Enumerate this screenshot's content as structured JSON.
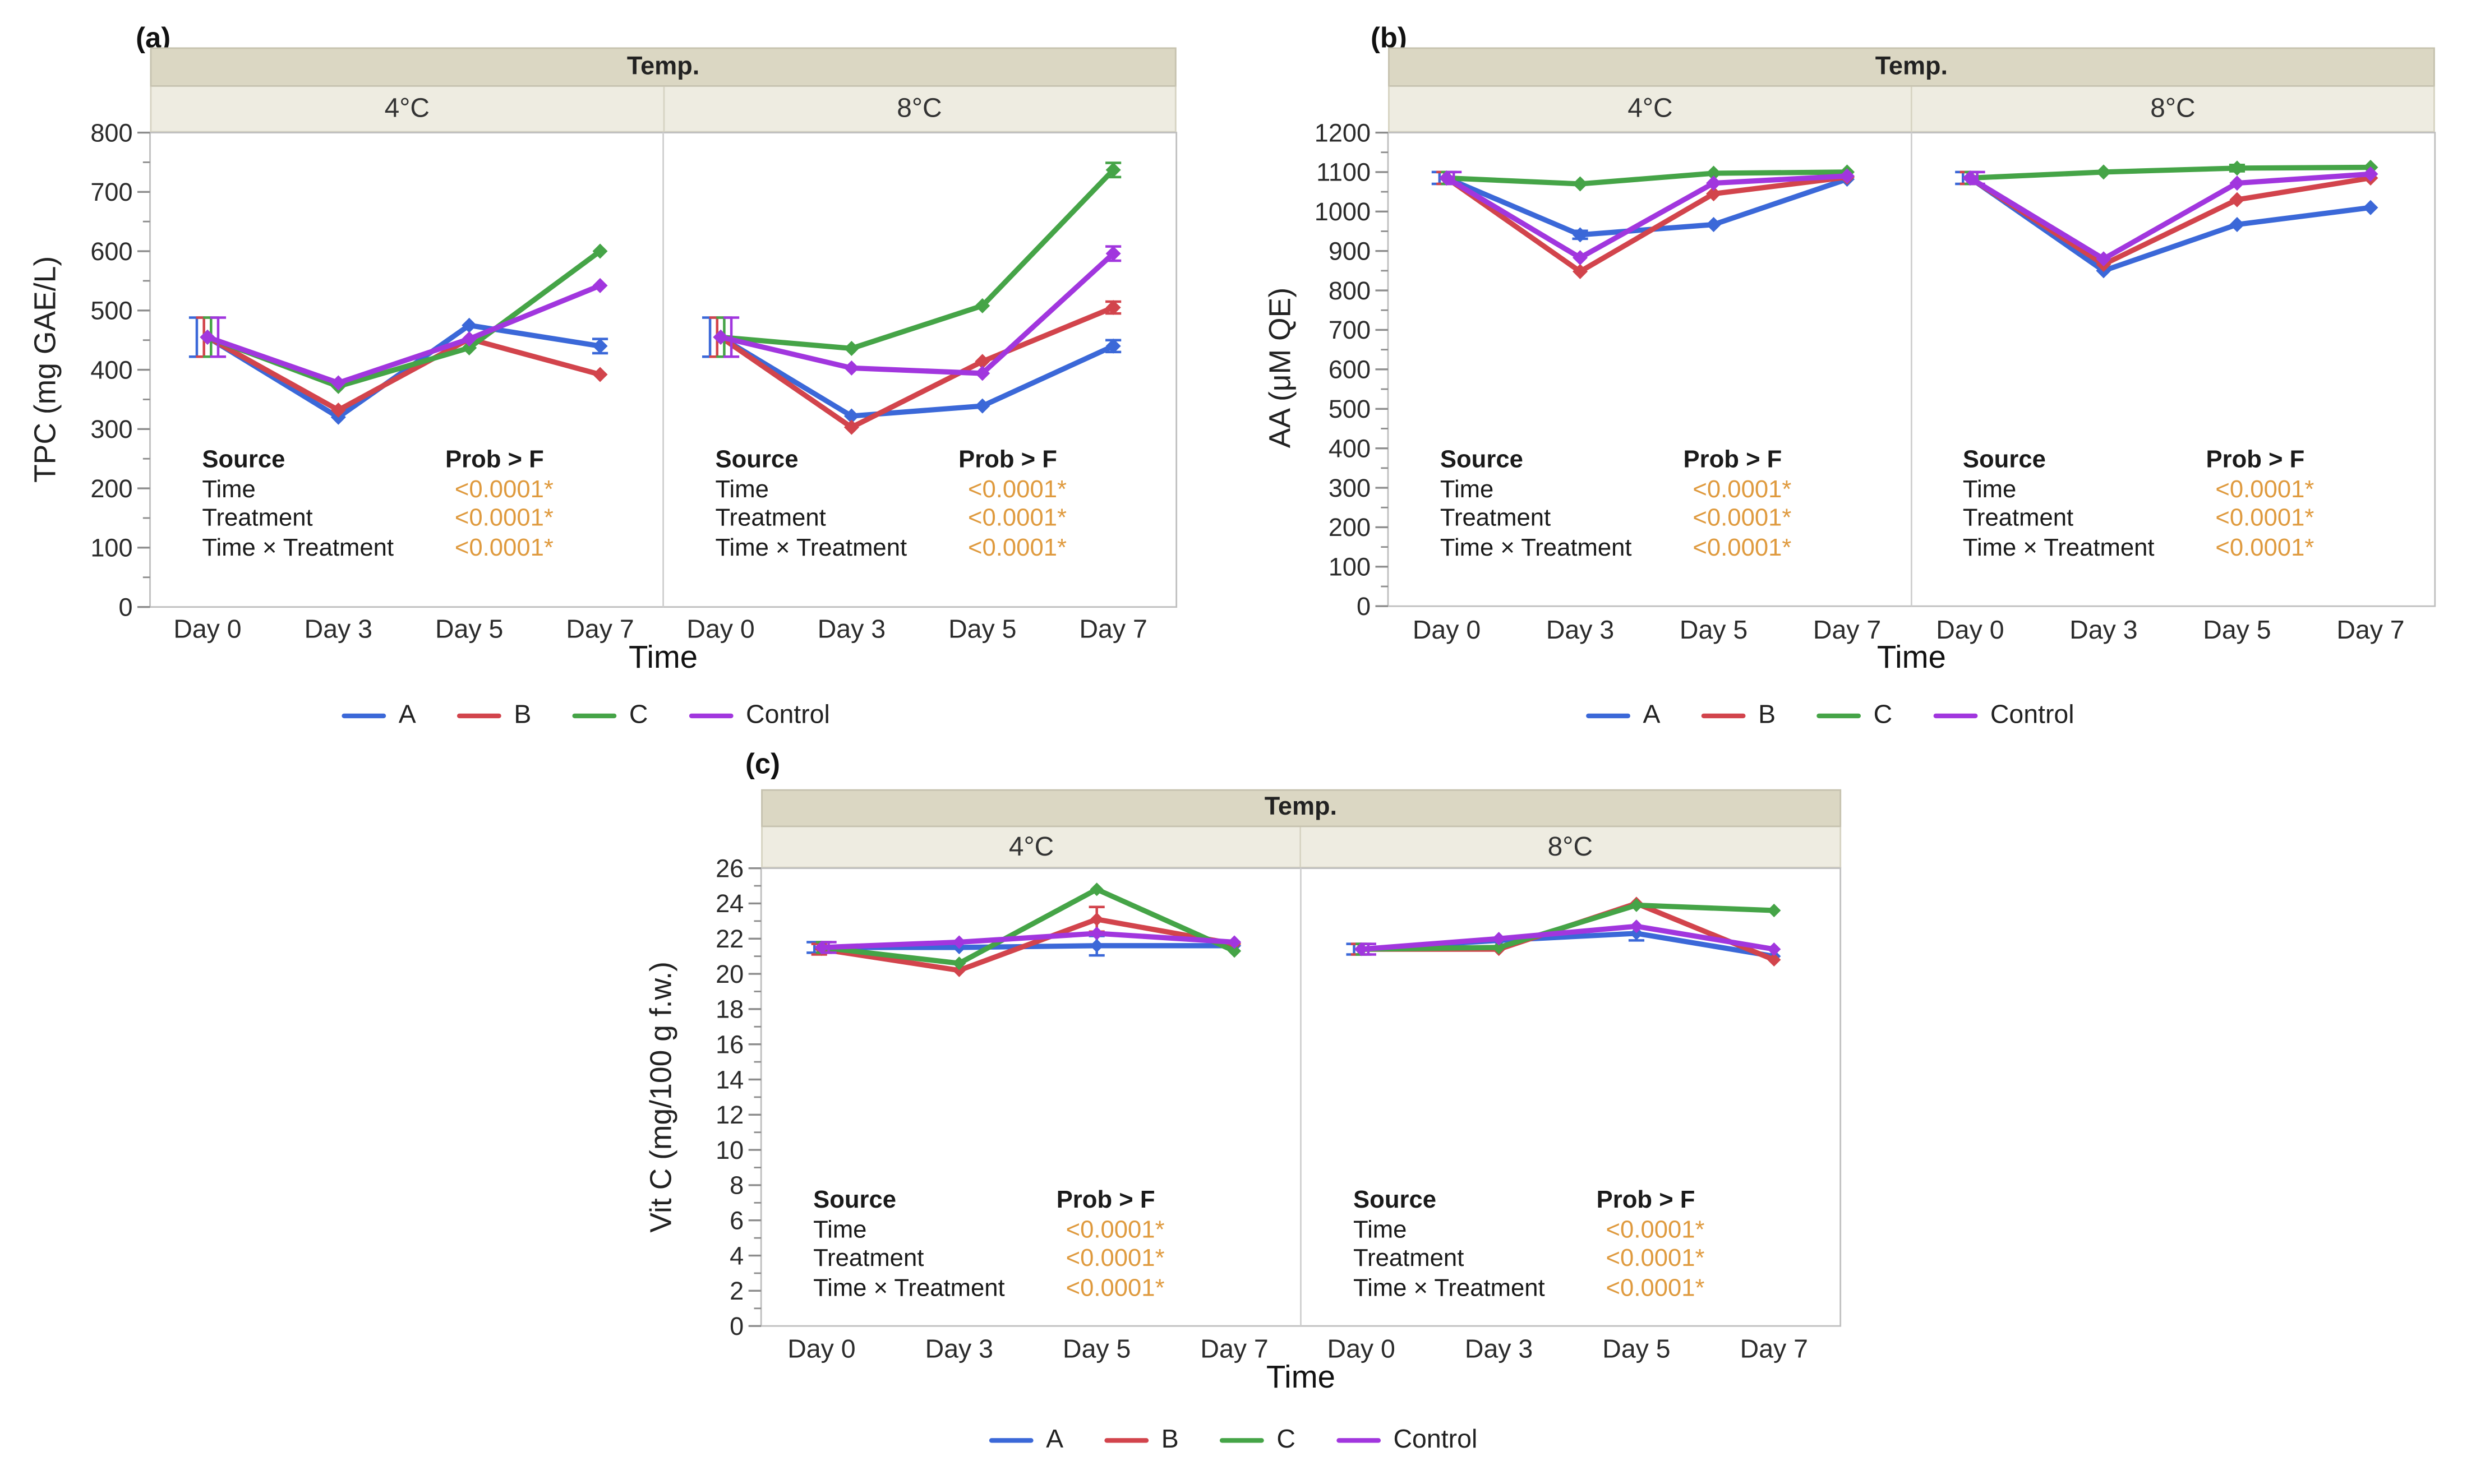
{
  "page": {
    "background": "#ffffff"
  },
  "legend": {
    "items": [
      {
        "label": "A",
        "color": "#3B68D8"
      },
      {
        "label": "B",
        "color": "#D2444C"
      },
      {
        "label": "C",
        "color": "#45A447"
      },
      {
        "label": "Control",
        "color": "#A136DE"
      }
    ]
  },
  "facet_header": {
    "title": "Temp.",
    "band_color": "#dbd7c3",
    "facet_band_color": "#eeece1",
    "facets": [
      "4°C",
      "8°C"
    ]
  },
  "stats_table": {
    "header_source": "Source",
    "header_prob": "Prob > F",
    "rows": [
      {
        "source": "Time",
        "prob": "<0.0001*"
      },
      {
        "source": "Treatment",
        "prob": "<0.0001*"
      },
      {
        "source": "Time × Treatment",
        "prob": "<0.0001*"
      }
    ],
    "value_color": "#DF9A3E",
    "shown_in_every_facet": true
  },
  "chart_data": [
    {
      "id": "a",
      "tag": "(a)",
      "type": "line",
      "ylabel": "TPC (mg GAE/L)",
      "xlabel": "Time",
      "ylim": [
        0,
        800
      ],
      "ytick_step": 100,
      "yminor_step": 50,
      "categories": [
        "Day 0",
        "Day 3",
        "Day 5",
        "Day 7"
      ],
      "legend_position": "bottom",
      "grid": false,
      "facets": [
        {
          "label": "4°C",
          "series": [
            {
              "name": "A",
              "values": [
                455,
                320,
                475,
                440
              ],
              "err": [
                33,
                0,
                0,
                12
              ]
            },
            {
              "name": "B",
              "values": [
                455,
                332,
                452,
                392
              ],
              "err": [
                33,
                0,
                0,
                0
              ]
            },
            {
              "name": "C",
              "values": [
                455,
                372,
                437,
                600
              ],
              "err": [
                33,
                0,
                0,
                0
              ]
            },
            {
              "name": "Control",
              "values": [
                455,
                378,
                452,
                542
              ],
              "err": [
                33,
                0,
                0,
                0
              ]
            }
          ]
        },
        {
          "label": "8°C",
          "series": [
            {
              "name": "A",
              "values": [
                455,
                322,
                339,
                440
              ],
              "err": [
                33,
                0,
                0,
                10
              ]
            },
            {
              "name": "B",
              "values": [
                455,
                303,
                414,
                505
              ],
              "err": [
                33,
                0,
                0,
                10
              ]
            },
            {
              "name": "C",
              "values": [
                455,
                436,
                508,
                737
              ],
              "err": [
                33,
                0,
                0,
                12
              ]
            },
            {
              "name": "Control",
              "values": [
                455,
                403,
                394,
                596
              ],
              "err": [
                33,
                0,
                0,
                12
              ]
            }
          ]
        }
      ]
    },
    {
      "id": "b",
      "tag": "(b)",
      "type": "line",
      "ylabel": "AA (μM QE)",
      "xlabel": "Time",
      "ylim": [
        0,
        1200
      ],
      "ytick_step": 100,
      "yminor_step": 50,
      "categories": [
        "Day 0",
        "Day 3",
        "Day 5",
        "Day 7"
      ],
      "legend_position": "bottom",
      "grid": false,
      "facets": [
        {
          "label": "4°C",
          "series": [
            {
              "name": "A",
              "values": [
                1085,
                941,
                967,
                1082
              ],
              "err": [
                15,
                10,
                0,
                0
              ]
            },
            {
              "name": "B",
              "values": [
                1085,
                848,
                1045,
                1087
              ],
              "err": [
                15,
                0,
                0,
                0
              ]
            },
            {
              "name": "C",
              "values": [
                1085,
                1070,
                1097,
                1100
              ],
              "err": [
                15,
                0,
                0,
                0
              ]
            },
            {
              "name": "Control",
              "values": [
                1085,
                883,
                1072,
                1090
              ],
              "err": [
                15,
                0,
                0,
                0
              ]
            }
          ]
        },
        {
          "label": "8°C",
          "series": [
            {
              "name": "A",
              "values": [
                1085,
                850,
                967,
                1010
              ],
              "err": [
                15,
                0,
                0,
                0
              ]
            },
            {
              "name": "B",
              "values": [
                1085,
                866,
                1030,
                1085
              ],
              "err": [
                15,
                0,
                0,
                0
              ]
            },
            {
              "name": "C",
              "values": [
                1085,
                1100,
                1110,
                1112
              ],
              "err": [
                15,
                0,
                8,
                0
              ]
            },
            {
              "name": "Control",
              "values": [
                1085,
                880,
                1072,
                1095
              ],
              "err": [
                15,
                0,
                0,
                0
              ]
            }
          ]
        }
      ]
    },
    {
      "id": "c",
      "tag": "(c)",
      "type": "line",
      "ylabel": "Vit C (mg/100 g f.w.)",
      "xlabel": "Time",
      "ylim": [
        0,
        26
      ],
      "ytick_step": 2,
      "yminor_step": 1,
      "categories": [
        "Day 0",
        "Day 3",
        "Day 5",
        "Day 7"
      ],
      "legend_position": "bottom",
      "grid": false,
      "facets": [
        {
          "label": "4°C",
          "series": [
            {
              "name": "A",
              "values": [
                21.5,
                21.5,
                21.6,
                21.6
              ],
              "err": [
                0.3,
                0,
                0.55,
                0
              ]
            },
            {
              "name": "B",
              "values": [
                21.4,
                20.2,
                23.1,
                21.7
              ],
              "err": [
                0.3,
                0,
                0.7,
                0
              ]
            },
            {
              "name": "C",
              "values": [
                21.5,
                20.6,
                24.8,
                21.3
              ],
              "err": [
                0.3,
                0,
                0,
                0
              ]
            },
            {
              "name": "Control",
              "values": [
                21.5,
                21.8,
                22.3,
                21.8
              ],
              "err": [
                0.3,
                0,
                0,
                0
              ]
            }
          ]
        },
        {
          "label": "8°C",
          "series": [
            {
              "name": "A",
              "values": [
                21.4,
                21.9,
                22.3,
                21.0
              ],
              "err": [
                0.3,
                0,
                0.4,
                0
              ]
            },
            {
              "name": "B",
              "values": [
                21.4,
                21.4,
                24.0,
                20.8
              ],
              "err": [
                0.3,
                0,
                0,
                0
              ]
            },
            {
              "name": "C",
              "values": [
                21.4,
                21.5,
                23.9,
                23.6
              ],
              "err": [
                0.3,
                0,
                0,
                0
              ]
            },
            {
              "name": "Control",
              "values": [
                21.4,
                22.0,
                22.7,
                21.4
              ],
              "err": [
                0.3,
                0,
                0,
                0
              ]
            }
          ]
        }
      ]
    }
  ]
}
